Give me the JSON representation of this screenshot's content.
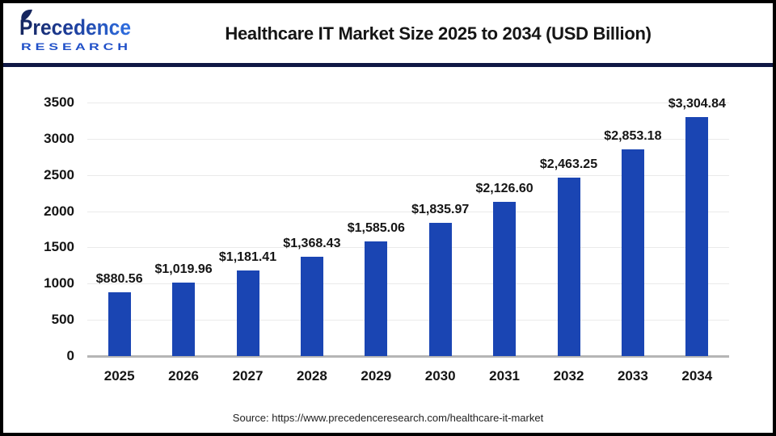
{
  "header": {
    "title": "Healthcare IT Market Size 2025 to 2034 (USD Billion)",
    "logo": {
      "brand": "Precedence",
      "sub": "R E S E A R C H"
    }
  },
  "chart_data": {
    "type": "bar",
    "title": "Healthcare IT Market Size 2025 to 2034 (USD Billion)",
    "categories": [
      "2025",
      "2026",
      "2027",
      "2028",
      "2029",
      "2030",
      "2031",
      "2032",
      "2033",
      "2034"
    ],
    "values": [
      880.56,
      1019.96,
      1181.41,
      1368.43,
      1585.06,
      1835.97,
      2126.6,
      2463.25,
      2853.18,
      3304.84
    ],
    "value_labels": [
      "$880.56",
      "$1,019.96",
      "$1,181.41",
      "$1,368.43",
      "$1,585.06",
      "$1,835.97",
      "$2,126.60",
      "$2,463.25",
      "$2,853.18",
      "$3,304.84"
    ],
    "xlabel": "",
    "ylabel": "",
    "ylim": [
      0,
      3500
    ],
    "yticks": [
      0,
      500,
      1000,
      1500,
      2000,
      2500,
      3000,
      3500
    ],
    "grid": true,
    "legend": "none",
    "bar_color": "#1a45b3"
  },
  "footer": {
    "source": "Source: https://www.precedenceresearch.com/healthcare-it-market"
  },
  "colors": {
    "bar": "#1a45b3",
    "divider_navy": "#0f1844",
    "gridline": "#eaeaea",
    "baseline": "#b5b5b5",
    "logo_dark": "#16265e",
    "logo_blue": "#2f6fe2",
    "research_blue": "#2050c8",
    "text": "#151515",
    "frame_border": "#000000"
  }
}
